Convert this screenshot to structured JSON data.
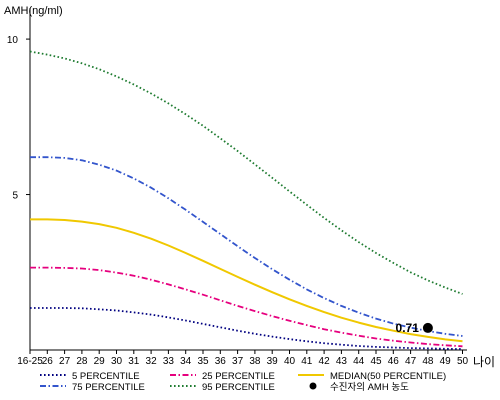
{
  "chart_data": {
    "type": "line",
    "ylabel": "AMH(ng/ml)",
    "xlabel": "나이",
    "ylim": [
      0,
      11
    ],
    "yticks": [
      5,
      10
    ],
    "categories": [
      "16-25",
      "26",
      "27",
      "28",
      "29",
      "30",
      "31",
      "32",
      "33",
      "34",
      "35",
      "36",
      "37",
      "38",
      "39",
      "40",
      "41",
      "42",
      "43",
      "44",
      "45",
      "46",
      "47",
      "48",
      "49",
      "50"
    ],
    "grid": false,
    "legend_position": "bottom",
    "series": [
      {
        "name": "5 PERCENTILE",
        "color": "#000080",
        "dash": "dot",
        "values": [
          1.35,
          1.35,
          1.35,
          1.34,
          1.31,
          1.27,
          1.21,
          1.14,
          1.05,
          0.95,
          0.84,
          0.73,
          0.62,
          0.52,
          0.43,
          0.35,
          0.28,
          0.22,
          0.17,
          0.13,
          0.1,
          0.08,
          0.06,
          0.05,
          0.04,
          0.03
        ]
      },
      {
        "name": "25 PERCENTILE",
        "color": "#E6007E",
        "dash": "dashdot",
        "values": [
          2.65,
          2.65,
          2.64,
          2.62,
          2.57,
          2.49,
          2.39,
          2.26,
          2.11,
          1.95,
          1.78,
          1.6,
          1.42,
          1.25,
          1.09,
          0.94,
          0.8,
          0.67,
          0.56,
          0.46,
          0.37,
          0.3,
          0.24,
          0.19,
          0.15,
          0.12
        ]
      },
      {
        "name": "MEDIAN(50 PERCENTILE)",
        "color": "#F0C800",
        "dash": "solid",
        "values": [
          4.2,
          4.2,
          4.18,
          4.13,
          4.05,
          3.93,
          3.77,
          3.58,
          3.36,
          3.12,
          2.87,
          2.61,
          2.35,
          2.1,
          1.86,
          1.63,
          1.42,
          1.22,
          1.04,
          0.88,
          0.74,
          0.62,
          0.51,
          0.42,
          0.34,
          0.28
        ]
      },
      {
        "name": "75 PERCENTILE",
        "color": "#3355CC",
        "dash": "dashdot",
        "values": [
          6.2,
          6.2,
          6.18,
          6.1,
          5.96,
          5.77,
          5.52,
          5.22,
          4.88,
          4.51,
          4.12,
          3.73,
          3.34,
          2.96,
          2.6,
          2.26,
          1.95,
          1.67,
          1.42,
          1.2,
          1.01,
          0.85,
          0.72,
          0.61,
          0.52,
          0.45
        ]
      },
      {
        "name": "95 PERCENTILE",
        "color": "#1E7B30",
        "dash": "dot",
        "values": [
          9.6,
          9.5,
          9.38,
          9.22,
          9.03,
          8.8,
          8.54,
          8.25,
          7.93,
          7.58,
          7.21,
          6.81,
          6.4,
          5.97,
          5.54,
          5.1,
          4.67,
          4.25,
          3.85,
          3.47,
          3.12,
          2.8,
          2.5,
          2.24,
          2.01,
          1.8
        ]
      }
    ],
    "marker": {
      "name": "수진자의 AMH 농도",
      "x": "48",
      "y": 0.71,
      "label": "0.71"
    },
    "x_axis_title": "나이"
  }
}
